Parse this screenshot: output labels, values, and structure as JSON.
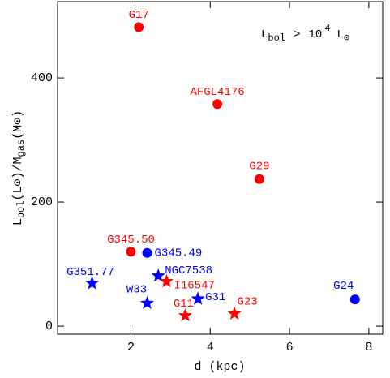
{
  "chart_data": {
    "type": "scatter",
    "x_label": "d (kpc)",
    "y_label": {
      "l": "L",
      "l_sub": "bol",
      "l_unit": "(L",
      "sun1": "⊙",
      "close1": ")/M",
      "m_sub": "gas",
      "m_unit": "(M",
      "sun2": "⊙",
      "close2": ")"
    },
    "annotation": {
      "l": "L",
      "l_sub": "bol",
      "op": ">",
      "base": "10",
      "exp": "4",
      "l2": "L",
      "sun": "⊙"
    },
    "xlim": [
      0.15,
      8.35
    ],
    "ylim": [
      -13,
      523
    ],
    "xticks": [
      2,
      4,
      6,
      8
    ],
    "yticks": [
      0,
      200,
      400
    ],
    "points": [
      {
        "label": "G17",
        "x": 2.2,
        "y": 482,
        "color": "#ff0000",
        "marker": "circle"
      },
      {
        "label": "AFGL4176",
        "x": 4.18,
        "y": 358,
        "color": "#ff0000",
        "marker": "circle"
      },
      {
        "label": "G29",
        "x": 5.24,
        "y": 237,
        "color": "#ff0000",
        "marker": "circle"
      },
      {
        "label": "G345.50",
        "x": 2.0,
        "y": 120,
        "color": "#ff0000",
        "marker": "circle"
      },
      {
        "label": "G345.49",
        "x": 2.41,
        "y": 118,
        "color": "#0000ff",
        "marker": "circle"
      },
      {
        "label": "G24",
        "x": 7.65,
        "y": 43,
        "color": "#0000ff",
        "marker": "circle"
      },
      {
        "label": "G351.77",
        "x": 1.02,
        "y": 69,
        "color": "#0000ff",
        "marker": "star"
      },
      {
        "label": "NGC7538",
        "x": 2.69,
        "y": 81,
        "color": "#0000ff",
        "marker": "star"
      },
      {
        "label": "W33",
        "x": 2.41,
        "y": 37,
        "color": "#0000ff",
        "marker": "star"
      },
      {
        "label": "G31",
        "x": 3.69,
        "y": 44,
        "color": "#0000ff",
        "marker": "star"
      },
      {
        "label": "I16547",
        "x": 2.9,
        "y": 72,
        "color": "#ff0000",
        "marker": "star"
      },
      {
        "label": "G11",
        "x": 3.37,
        "y": 17,
        "color": "#ff0000",
        "marker": "star"
      },
      {
        "label": "G23",
        "x": 4.61,
        "y": 20,
        "color": "#ff0000",
        "marker": "star"
      }
    ]
  }
}
